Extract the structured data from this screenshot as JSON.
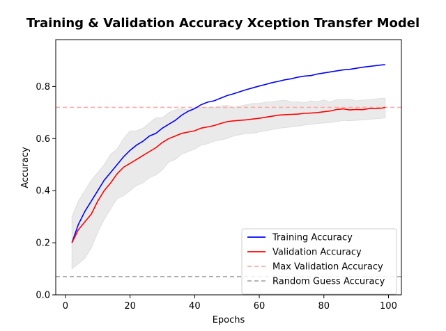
{
  "chart_data": {
    "type": "line",
    "title": "Training & Validation Accuracy Xception Transfer Model",
    "xlabel": "Epochs",
    "ylabel": "Accuracy",
    "xlim": [
      -3,
      104
    ],
    "ylim": [
      0.0,
      0.98
    ],
    "x_ticks": [
      0,
      20,
      40,
      60,
      80,
      100
    ],
    "y_ticks": [
      0.0,
      0.2,
      0.4,
      0.6,
      0.8
    ],
    "grid": false,
    "legend_position": "lower-right",
    "series": [
      {
        "name": "Training Accuracy",
        "color": "#0000ff",
        "x": [
          2,
          4,
          6,
          8,
          10,
          12,
          14,
          16,
          18,
          20,
          22,
          24,
          26,
          28,
          30,
          32,
          34,
          36,
          38,
          40,
          42,
          44,
          46,
          48,
          50,
          52,
          54,
          56,
          58,
          60,
          62,
          64,
          66,
          68,
          70,
          72,
          74,
          76,
          78,
          80,
          82,
          84,
          86,
          88,
          90,
          92,
          94,
          96,
          98,
          99
        ],
        "y": [
          0.2,
          0.27,
          0.32,
          0.36,
          0.4,
          0.44,
          0.47,
          0.5,
          0.53,
          0.555,
          0.575,
          0.59,
          0.61,
          0.62,
          0.64,
          0.655,
          0.67,
          0.69,
          0.705,
          0.715,
          0.73,
          0.74,
          0.745,
          0.755,
          0.765,
          0.772,
          0.78,
          0.788,
          0.795,
          0.802,
          0.808,
          0.815,
          0.82,
          0.826,
          0.83,
          0.836,
          0.84,
          0.842,
          0.848,
          0.852,
          0.856,
          0.86,
          0.864,
          0.866,
          0.87,
          0.874,
          0.877,
          0.88,
          0.883,
          0.884
        ]
      },
      {
        "name": "Validation Accuracy",
        "color": "#ff0000",
        "x": [
          2,
          4,
          6,
          8,
          10,
          12,
          14,
          16,
          18,
          20,
          22,
          24,
          26,
          28,
          30,
          32,
          34,
          36,
          38,
          40,
          42,
          44,
          46,
          48,
          50,
          52,
          54,
          56,
          58,
          60,
          62,
          64,
          66,
          68,
          70,
          72,
          74,
          76,
          78,
          80,
          82,
          84,
          86,
          88,
          90,
          92,
          94,
          96,
          98,
          99
        ],
        "y": [
          0.2,
          0.25,
          0.28,
          0.31,
          0.36,
          0.4,
          0.43,
          0.465,
          0.49,
          0.505,
          0.52,
          0.535,
          0.55,
          0.565,
          0.585,
          0.6,
          0.61,
          0.62,
          0.625,
          0.63,
          0.64,
          0.645,
          0.65,
          0.658,
          0.665,
          0.668,
          0.67,
          0.672,
          0.675,
          0.678,
          0.682,
          0.686,
          0.69,
          0.692,
          0.693,
          0.694,
          0.697,
          0.698,
          0.7,
          0.703,
          0.706,
          0.712,
          0.714,
          0.71,
          0.712,
          0.711,
          0.715,
          0.716,
          0.717,
          0.72
        ]
      }
    ],
    "band": {
      "color": "#e8e8e8",
      "x": [
        2,
        4,
        6,
        8,
        10,
        12,
        14,
        16,
        18,
        20,
        22,
        24,
        26,
        28,
        30,
        32,
        34,
        36,
        38,
        40,
        42,
        44,
        46,
        48,
        50,
        52,
        54,
        56,
        58,
        60,
        62,
        64,
        66,
        68,
        70,
        72,
        74,
        76,
        78,
        80,
        82,
        84,
        86,
        88,
        90,
        92,
        94,
        96,
        98,
        99
      ],
      "upper": [
        0.3,
        0.36,
        0.4,
        0.44,
        0.47,
        0.5,
        0.54,
        0.56,
        0.6,
        0.63,
        0.63,
        0.64,
        0.66,
        0.68,
        0.68,
        0.7,
        0.71,
        0.715,
        0.71,
        0.72,
        0.72,
        0.72,
        0.72,
        0.725,
        0.728,
        0.72,
        0.725,
        0.73,
        0.735,
        0.735,
        0.74,
        0.742,
        0.745,
        0.748,
        0.74,
        0.742,
        0.738,
        0.745,
        0.742,
        0.748,
        0.74,
        0.75,
        0.75,
        0.752,
        0.745,
        0.748,
        0.75,
        0.752,
        0.755,
        0.755
      ],
      "lower": [
        0.1,
        0.12,
        0.14,
        0.18,
        0.24,
        0.29,
        0.33,
        0.37,
        0.38,
        0.4,
        0.42,
        0.43,
        0.45,
        0.46,
        0.48,
        0.51,
        0.52,
        0.54,
        0.55,
        0.56,
        0.575,
        0.58,
        0.59,
        0.595,
        0.6,
        0.61,
        0.615,
        0.62,
        0.62,
        0.625,
        0.63,
        0.635,
        0.64,
        0.642,
        0.645,
        0.648,
        0.652,
        0.655,
        0.658,
        0.66,
        0.662,
        0.665,
        0.67,
        0.668,
        0.67,
        0.672,
        0.674,
        0.676,
        0.678,
        0.68
      ]
    },
    "hlines": [
      {
        "name": "Max Validation Accuracy",
        "y": 0.72,
        "color": "#ffaaaa"
      },
      {
        "name": "Random Guess Accuracy",
        "y": 0.07,
        "color": "#aaaaaa"
      }
    ]
  }
}
